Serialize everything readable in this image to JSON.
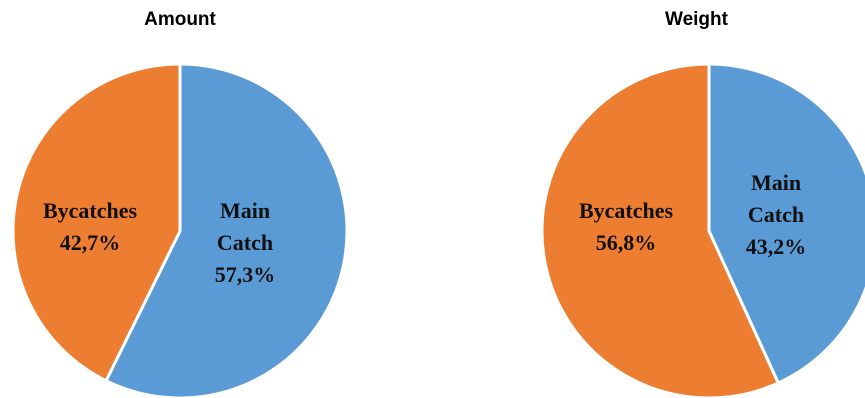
{
  "chart_data": [
    {
      "type": "pie",
      "title": "Amount",
      "slices": [
        {
          "label_lines": [
            "Main",
            "Catch"
          ],
          "pct_text": "57,3%",
          "value": 57.3,
          "color": "#5b9bd5"
        },
        {
          "label_lines": [
            "Bycatches"
          ],
          "pct_text": "42,7%",
          "value": 42.7,
          "color": "#ed7d31"
        }
      ]
    },
    {
      "type": "pie",
      "title": "Weight",
      "slices": [
        {
          "label_lines": [
            "Main",
            "Catch"
          ],
          "pct_text": "43,2%",
          "value": 43.2,
          "color": "#5b9bd5"
        },
        {
          "label_lines": [
            "Bycatches"
          ],
          "pct_text": "56,8%",
          "value": 56.8,
          "color": "#ed7d31"
        }
      ]
    }
  ]
}
